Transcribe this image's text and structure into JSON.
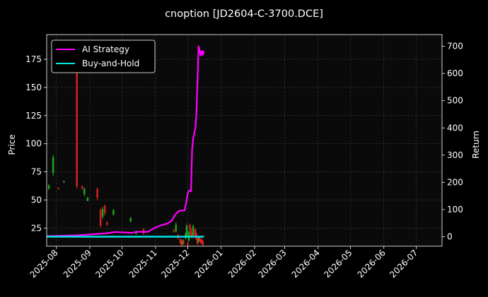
{
  "chart_data": {
    "type": "line",
    "title": "cnoption [JD2604-C-3700.DCE]",
    "ylabel": "Price",
    "y2label": "Return",
    "x_range": [
      "2025-07-23",
      "2026-07-25"
    ],
    "ylim": [
      8.9,
      197.0
    ],
    "y2lim": [
      -35,
      743
    ],
    "yticks": [
      25,
      50,
      75,
      100,
      125,
      150,
      175
    ],
    "y2ticks": [
      0,
      100,
      200,
      300,
      400,
      500,
      600,
      700
    ],
    "xticks": [
      "2025-08",
      "2025-09",
      "2025-10",
      "2025-11",
      "2025-12",
      "2026-01",
      "2026-02",
      "2026-03",
      "2026-04",
      "2026-05",
      "2026-06",
      "2026-07"
    ],
    "grid": true,
    "legend": "upper-left",
    "colors": {
      "background": "#000000",
      "plot_background": "#0a0a0a",
      "grid": "#3a3a3a",
      "ai": "#ff00ff",
      "bh": "#00e5e5",
      "up": "#1faa1f",
      "down": "#e02020",
      "axis": "#ffffff"
    },
    "series": [
      {
        "name": "AI Strategy",
        "axis": "right",
        "x": [
          "2025-07-23",
          "2025-08-10",
          "2025-08-20",
          "2025-09-01",
          "2025-09-15",
          "2025-09-25",
          "2025-10-01",
          "2025-10-10",
          "2025-10-15",
          "2025-10-25",
          "2025-11-01",
          "2025-11-08",
          "2025-11-12",
          "2025-11-16",
          "2025-11-18",
          "2025-11-21",
          "2025-11-23",
          "2025-11-25",
          "2025-11-28",
          "2025-12-01",
          "2025-12-02",
          "2025-12-04",
          "2025-12-05",
          "2025-12-06",
          "2025-12-08",
          "2025-12-09",
          "2025-12-10",
          "2025-12-11",
          "2025-12-12",
          "2025-12-13",
          "2025-12-14",
          "2025-12-15",
          "2025-12-16"
        ],
        "values": [
          2,
          4,
          5,
          8,
          12,
          17,
          16,
          14,
          18,
          18,
          34,
          44,
          48,
          58,
          73,
          89,
          95,
          96,
          96,
          158,
          170,
          167,
          320,
          360,
          400,
          448,
          565,
          700,
          682,
          666,
          683,
          668,
          683
        ]
      },
      {
        "name": "Buy-and-Hold",
        "axis": "right",
        "x": [
          "2025-07-23",
          "2025-12-16"
        ],
        "values": [
          0,
          0
        ]
      }
    ],
    "candles": [
      {
        "date": "2025-07-25",
        "open": 60,
        "close": 63,
        "high": 64,
        "low": 59
      },
      {
        "date": "2025-07-29",
        "open": 74,
        "close": 88,
        "high": 90,
        "low": 71
      },
      {
        "date": "2025-08-03",
        "open": 61,
        "close": 60,
        "high": 61,
        "low": 59
      },
      {
        "date": "2025-08-08",
        "open": 66,
        "close": 67,
        "high": 67,
        "low": 65
      },
      {
        "date": "2025-08-20",
        "open": 175,
        "close": 62,
        "high": 178,
        "low": 60
      },
      {
        "date": "2025-08-25",
        "open": 62,
        "close": 60,
        "high": 63,
        "low": 59
      },
      {
        "date": "2025-08-27",
        "open": 55,
        "close": 60,
        "high": 61,
        "low": 53
      },
      {
        "date": "2025-08-30",
        "open": 49,
        "close": 52,
        "high": 53,
        "low": 49
      },
      {
        "date": "2025-09-08",
        "open": 60,
        "close": 52,
        "high": 61,
        "low": 50
      },
      {
        "date": "2025-09-11",
        "open": 41,
        "close": 27,
        "high": 43,
        "low": 25
      },
      {
        "date": "2025-09-13",
        "open": 35,
        "close": 42,
        "high": 44,
        "low": 33
      },
      {
        "date": "2025-09-15",
        "open": 45,
        "close": 38,
        "high": 46,
        "low": 36
      },
      {
        "date": "2025-09-17",
        "open": 30,
        "close": 28,
        "high": 31,
        "low": 27
      },
      {
        "date": "2025-09-23",
        "open": 37,
        "close": 41,
        "high": 42,
        "low": 36
      },
      {
        "date": "2025-10-09",
        "open": 31,
        "close": 34,
        "high": 35,
        "low": 30
      },
      {
        "date": "2025-10-14",
        "open": 20,
        "close": 22,
        "high": 23,
        "low": 19
      },
      {
        "date": "2025-10-21",
        "open": 24,
        "close": 20,
        "high": 25,
        "low": 19
      },
      {
        "date": "2025-11-18",
        "open": 23,
        "close": 22,
        "high": 24,
        "low": 21
      },
      {
        "date": "2025-11-20",
        "open": 22,
        "close": 28,
        "high": 30,
        "low": 21
      },
      {
        "date": "2025-11-22",
        "open": 19,
        "close": 16,
        "high": 20,
        "low": 15
      },
      {
        "date": "2025-11-24",
        "open": 15,
        "close": 12,
        "high": 16,
        "low": 11
      },
      {
        "date": "2025-11-25",
        "open": 13,
        "close": 10,
        "high": 14,
        "low": 9
      },
      {
        "date": "2025-11-26",
        "open": 11,
        "close": 14,
        "high": 15,
        "low": 10
      },
      {
        "date": "2025-11-27",
        "open": 14,
        "close": 11,
        "high": 15,
        "low": 10
      },
      {
        "date": "2025-11-29",
        "open": 16,
        "close": 20,
        "high": 21,
        "low": 15
      },
      {
        "date": "2025-11-30",
        "open": 18,
        "close": 27,
        "high": 29,
        "low": 17
      },
      {
        "date": "2025-12-01",
        "open": 12,
        "close": 10,
        "high": 13,
        "low": 9
      },
      {
        "date": "2025-12-02",
        "open": 14,
        "close": 22,
        "high": 23,
        "low": 13
      },
      {
        "date": "2025-12-03",
        "open": 28,
        "close": 24,
        "high": 29,
        "low": 23
      },
      {
        "date": "2025-12-04",
        "open": 24,
        "close": 18,
        "high": 25,
        "low": 17
      },
      {
        "date": "2025-12-05",
        "open": 20,
        "close": 17,
        "high": 21,
        "low": 16
      },
      {
        "date": "2025-12-06",
        "open": 19,
        "close": 27,
        "high": 28,
        "low": 18
      },
      {
        "date": "2025-12-08",
        "open": 24,
        "close": 18,
        "high": 25,
        "low": 17
      },
      {
        "date": "2025-12-09",
        "open": 20,
        "close": 15,
        "high": 21,
        "low": 14
      },
      {
        "date": "2025-12-10",
        "open": 15,
        "close": 11,
        "high": 16,
        "low": 10
      },
      {
        "date": "2025-12-11",
        "open": 13,
        "close": 17,
        "high": 18,
        "low": 12
      },
      {
        "date": "2025-12-12",
        "open": 17,
        "close": 14,
        "high": 18,
        "low": 13
      },
      {
        "date": "2025-12-13",
        "open": 14,
        "close": 12,
        "high": 15,
        "low": 11
      },
      {
        "date": "2025-12-14",
        "open": 15,
        "close": 12,
        "high": 16,
        "low": 11
      },
      {
        "date": "2025-12-15",
        "open": 13,
        "close": 10,
        "high": 14,
        "low": 9
      }
    ]
  }
}
